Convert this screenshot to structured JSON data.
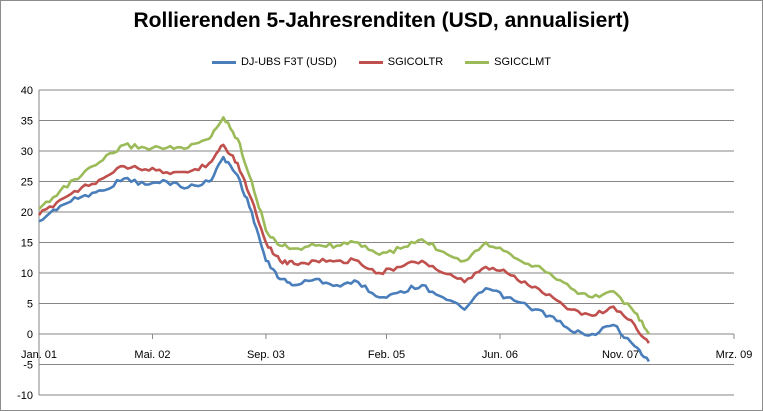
{
  "chart_data": {
    "type": "line",
    "title": "Rollierenden 5-Jahresrenditen (USD, annualisiert)",
    "xlabel": "",
    "ylabel": "",
    "ylim": [
      -10,
      40
    ],
    "yticks": [
      -10,
      -5,
      0,
      5,
      10,
      15,
      20,
      25,
      30,
      35,
      40
    ],
    "xlim": [
      "2001-01",
      "2009-03"
    ],
    "xticks": [
      {
        "label": "Jan. 01",
        "date": "2001-01"
      },
      {
        "label": "Mai. 02",
        "date": "2002-05"
      },
      {
        "label": "Sep. 03",
        "date": "2003-09"
      },
      {
        "label": "Feb. 05",
        "date": "2005-02"
      },
      {
        "label": "Jun. 06",
        "date": "2006-06"
      },
      {
        "label": "Nov. 07",
        "date": "2007-11"
      },
      {
        "label": "Mrz. 09",
        "date": "2009-03"
      }
    ],
    "grid": "horizontal",
    "legend_position": "top",
    "x": [
      "2001-01",
      "2001-04",
      "2001-07",
      "2001-10",
      "2002-01",
      "2002-04",
      "2002-07",
      "2002-10",
      "2003-01",
      "2003-03",
      "2003-05",
      "2003-07",
      "2003-09",
      "2003-11",
      "2004-01",
      "2004-04",
      "2004-07",
      "2004-10",
      "2005-01",
      "2005-04",
      "2005-07",
      "2005-10",
      "2006-01",
      "2006-04",
      "2006-07",
      "2006-10",
      "2007-01",
      "2007-04",
      "2007-07",
      "2007-10",
      "2008-01",
      "2008-03"
    ],
    "series": [
      {
        "name": "DJ-UBS F3T (USD)",
        "color": "#4a7ebb",
        "values": [
          18.5,
          21,
          22.5,
          23.5,
          25.5,
          24.5,
          25,
          24,
          25,
          29,
          26,
          20,
          12,
          9,
          8,
          9,
          8,
          8.5,
          6,
          7,
          8,
          6,
          4,
          7.5,
          6,
          4.5,
          3,
          0.5,
          0,
          1.5,
          -2,
          -4.5
        ]
      },
      {
        "name": "SGICOLTR",
        "color": "#c0504d",
        "values": [
          19.5,
          22,
          24,
          25.5,
          27.5,
          27,
          26.5,
          26.5,
          28,
          31,
          28,
          22,
          15,
          12,
          11.5,
          12,
          12,
          12,
          10,
          11,
          12,
          10,
          8.5,
          11,
          10,
          8,
          6.5,
          4,
          3,
          4.5,
          1.5,
          -1.5
        ]
      },
      {
        "name": "SGICCLMT",
        "color": "#9bbb59",
        "values": [
          20.5,
          23.5,
          26,
          28.5,
          31,
          30.5,
          30.5,
          30.5,
          32,
          35.5,
          32,
          25,
          17,
          14.5,
          14,
          14.5,
          14.5,
          15,
          13,
          14,
          15.5,
          13.5,
          12,
          15,
          13.5,
          11.5,
          10,
          7.5,
          6,
          7,
          3.5,
          0
        ]
      }
    ]
  }
}
